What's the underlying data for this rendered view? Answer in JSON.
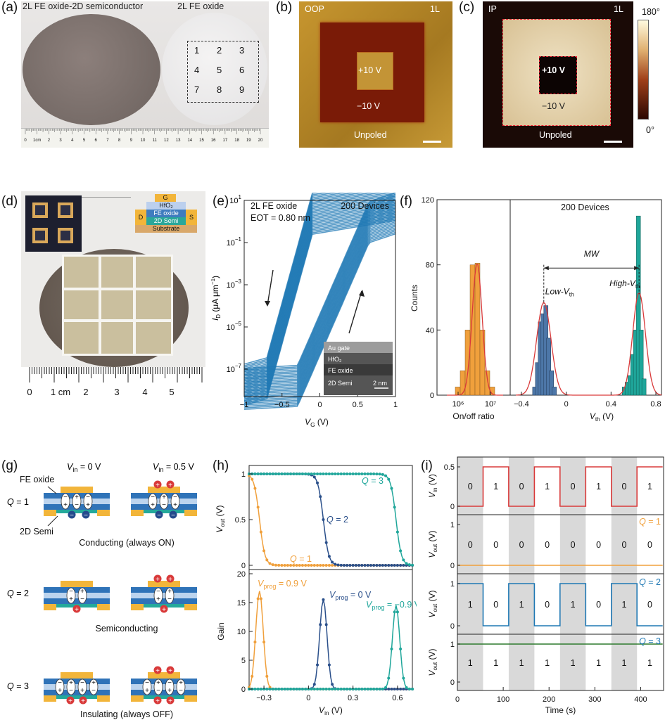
{
  "panel_a": {
    "label": "(a)",
    "left_caption": "2L FE oxide-2D semiconductor",
    "right_caption": "2L FE oxide",
    "grid_numbers": [
      "1",
      "2",
      "3",
      "4",
      "5",
      "6",
      "7",
      "8",
      "9"
    ],
    "ruler_label": "1cm",
    "ruler_ticks": [
      "0",
      "1cm",
      "2",
      "3",
      "4",
      "5",
      "6",
      "7",
      "8",
      "9",
      "10",
      "11",
      "12",
      "13",
      "14",
      "15",
      "16",
      "17",
      "18",
      "19",
      "20"
    ]
  },
  "panel_b": {
    "label": "(b)",
    "mode": "OOP",
    "layer": "1L",
    "inner": "+10 V",
    "outer": "−10 V",
    "bottom": "Unpoled"
  },
  "panel_c": {
    "label": "(c)",
    "mode": "IP",
    "layer": "1L",
    "inner": "+10 V",
    "outer": "−10 V",
    "bottom": "Unpoled",
    "scale_top": "180°",
    "scale_bottom": "0°"
  },
  "panel_d": {
    "label": "(d)",
    "stack": [
      "G",
      "HfO₂",
      "FE oxide",
      "2D Semi",
      "Substrate"
    ],
    "source": "S",
    "drain": "D",
    "ruler_labels": [
      "0",
      "1 cm",
      "2",
      "3",
      "4",
      "5"
    ]
  },
  "panel_e": {
    "label": "(e)",
    "text1": "2L FE oxide",
    "text2": "EOT = 0.80 nm",
    "devices": "200 Devices",
    "ylabel": "I_D (μA μm⁻¹)",
    "ylabel_main": "I",
    "ylabel_sub": "D",
    "ylabel_rest": " (μA μm",
    "ylabel_sup": "−1",
    "ylabel_end": ")",
    "xlabel_main": "V",
    "xlabel_sub": "G",
    "xlabel_rest": " (V)",
    "y_ticks": [
      {
        "m": "10",
        "e": "1"
      },
      {
        "m": "10",
        "e": "−1"
      },
      {
        "m": "10",
        "e": "−3"
      },
      {
        "m": "10",
        "e": "−5"
      },
      {
        "m": "10",
        "e": "−7"
      }
    ],
    "x_ticks": [
      "−1",
      "−0.5",
      "0",
      "0.5",
      "1"
    ],
    "inset": {
      "l1": "Au gate",
      "l2": "HfO₂",
      "l3": "FE oxide",
      "l4": "2D Semi",
      "scale": "2 nm"
    }
  },
  "panel_f": {
    "label": "(f)",
    "devices": "200 Devices",
    "ylabel": "Counts",
    "y_ticks": [
      "120",
      "80",
      "40",
      "0"
    ],
    "left_x_ticks": [
      "10⁶",
      "10⁷"
    ],
    "left_xlabel": "On/off ratio",
    "right_x_ticks": [
      "−0.4",
      "0",
      "0.4",
      "0.8"
    ],
    "right_xlabel_main": "V",
    "right_xlabel_sub": "th",
    "right_xlabel_rest": " (V)",
    "mw": "MW",
    "low": "Low-V",
    "low_sub": "th",
    "high": "High-V",
    "high_sub": "th"
  },
  "panel_g": {
    "label": "(g)",
    "vin0": "= 0 V",
    "vin05": "= 0.5 V",
    "fe_oxide": "FE oxide",
    "semi": "2D Semi",
    "q1": "Q = 1",
    "q2": "Q = 2",
    "q3": "Q = 3",
    "cap1": "Conducting (always ON)",
    "cap2": "Semiconducting",
    "cap3": "Insulating (always OFF)"
  },
  "panel_h": {
    "label": "(h)",
    "top_yticks": [
      "1",
      "0.5",
      "0"
    ],
    "bot_yticks": [
      "20",
      "15",
      "10",
      "5",
      "0"
    ],
    "x_ticks": [
      "−0.3",
      "0",
      "0.3",
      "0.6"
    ],
    "q1": "Q = 1",
    "q2": "Q = 2",
    "q3": "Q = 3",
    "vprog1": "= 0.9 V",
    "vprog2": "= 0 V",
    "vprog3": "= −0.9 V",
    "gain": "Gain"
  },
  "panel_i": {
    "label": "(i)",
    "xlabel": "Time (s)",
    "x_ticks": [
      "0",
      "100",
      "200",
      "300",
      "400"
    ],
    "bits_in": [
      "0",
      "1",
      "0",
      "1",
      "0",
      "1",
      "0",
      "1"
    ],
    "bits_q1": [
      "0",
      "0",
      "0",
      "0",
      "0",
      "0",
      "0",
      "0"
    ],
    "bits_q2": [
      "1",
      "0",
      "1",
      "0",
      "1",
      "0",
      "1",
      "0"
    ],
    "bits_q3": [
      "1",
      "1",
      "1",
      "1",
      "1",
      "1",
      "1",
      "1"
    ],
    "q1": "Q = 1",
    "q2": "Q = 2",
    "q3": "Q = 3",
    "vin_ticks": [
      "0.5",
      "0"
    ],
    "vout_ticks": [
      "1",
      "0"
    ]
  },
  "colors": {
    "orange": "#f0a03c",
    "blue": "#2f6fa8",
    "teal": "#1fa69a",
    "red": "#d93a3a",
    "navy": "#2a4f8a",
    "grid": "#d9d9d9",
    "green": "#2d7a2d"
  },
  "chart_data": [
    {
      "type": "histogram",
      "panel": "f-left",
      "xlabel": "On/off ratio",
      "ylabel": "Counts",
      "x_scale": "log",
      "ylim": [
        0,
        120
      ],
      "series": [
        {
          "name": "On/off ratio",
          "values": [
            5,
            15,
            40,
            80,
            81,
            40,
            15,
            5
          ]
        }
      ]
    },
    {
      "type": "histogram",
      "panel": "f-right",
      "ylim": [
        0,
        120
      ],
      "xlim": [
        -0.45,
        0.85
      ],
      "series": [
        {
          "name": "Low-Vth",
          "center": -0.2,
          "values": [
            5,
            20,
            45,
            50,
            55,
            35,
            15,
            5
          ]
        },
        {
          "name": "High-Vth",
          "center": 0.65,
          "values": [
            5,
            8,
            12,
            25,
            40,
            110,
            40,
            10
          ]
        }
      ]
    },
    {
      "type": "line",
      "panel": "h-top",
      "ylabel": "Vout (V)",
      "xlim": [
        -0.4,
        0.7
      ],
      "ylim": [
        0,
        1
      ],
      "series": [
        {
          "name": "Q = 1",
          "switch_x": -0.33
        },
        {
          "name": "Q = 2",
          "switch_x": 0.1
        },
        {
          "name": "Q = 3",
          "switch_x": 0.59
        }
      ]
    },
    {
      "type": "line",
      "panel": "h-bottom",
      "ylabel": "Gain",
      "xlim": [
        -0.4,
        0.7
      ],
      "ylim": [
        0,
        20
      ],
      "series": [
        {
          "name": "Vprog = 0.9 V",
          "peak_x": -0.35,
          "peak_y": 17
        },
        {
          "name": "Vprog = 0 V",
          "peak_x": 0.1,
          "peak_y": 15.5
        },
        {
          "name": "Vprog = −0.9 V",
          "peak_x": 0.59,
          "peak_y": 14.5
        }
      ]
    },
    {
      "type": "line",
      "panel": "i",
      "xlabel": "Time (s)",
      "xlim": [
        0,
        450
      ],
      "series": [
        {
          "name": "Vin",
          "bits": [
            0,
            1,
            0,
            1,
            0,
            1,
            0,
            1
          ]
        },
        {
          "name": "Q = 1",
          "bits": [
            0,
            0,
            0,
            0,
            0,
            0,
            0,
            0
          ]
        },
        {
          "name": "Q = 2",
          "bits": [
            1,
            0,
            1,
            0,
            1,
            0,
            1,
            0
          ]
        },
        {
          "name": "Q = 3",
          "bits": [
            1,
            1,
            1,
            1,
            1,
            1,
            1,
            1
          ]
        }
      ]
    }
  ]
}
